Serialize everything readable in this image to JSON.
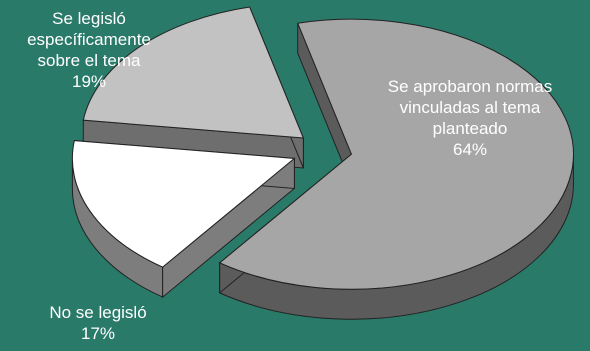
{
  "colors": {
    "background": "#2a7a6a"
  },
  "chart_data": {
    "type": "pie",
    "style": "3d-exploded",
    "slices": [
      {
        "label_lines": [
          "Se aprobaron normas",
          "vinculadas al tema",
          "planteado"
        ],
        "value": 64,
        "value_label": "64%",
        "color": "#a6a6a6",
        "side_color": "#5b5b5b"
      },
      {
        "label_lines": [
          "No se legisló"
        ],
        "value": 17,
        "value_label": "17%",
        "color": "#ffffff",
        "side_color": "#7d7d7d"
      },
      {
        "label_lines": [
          "Se legisló",
          "específicamente",
          "sobre el tema"
        ],
        "value": 19,
        "value_label": "19%",
        "color": "#c2c2c2",
        "side_color": "#6e6e6e"
      }
    ]
  }
}
